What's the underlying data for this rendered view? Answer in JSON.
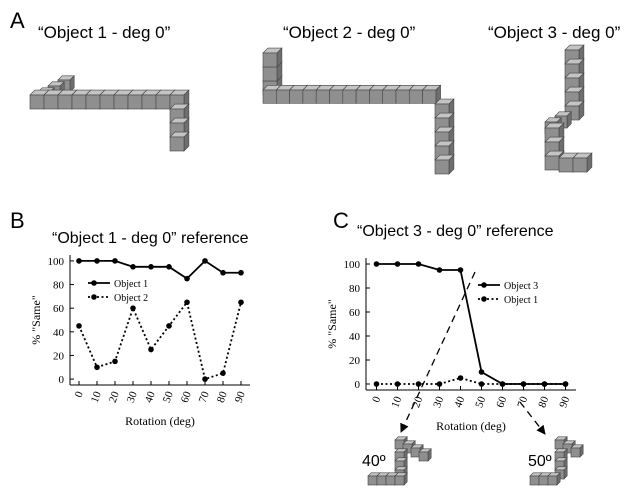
{
  "panels": [
    "A",
    "B",
    "C"
  ],
  "objects": [
    "“Object 1 - deg 0”",
    "“Object 2 - deg 0”",
    "“Object 3 - deg 0”"
  ],
  "rotations": [
    "40º",
    "50º"
  ],
  "chart_data": [
    {
      "type": "line",
      "title": "“Object 1 - deg 0” reference",
      "xlabel": "Rotation (deg)",
      "ylabel": "% \"Same\"",
      "x": [
        0,
        10,
        20,
        30,
        40,
        50,
        60,
        70,
        80,
        90
      ],
      "xlim": [
        -5,
        95
      ],
      "ylim": [
        -5,
        105
      ],
      "xticks": [
        0,
        10,
        20,
        30,
        40,
        50,
        60,
        70,
        80,
        90
      ],
      "yticks": [
        0,
        20,
        40,
        60,
        80,
        100
      ],
      "series": [
        {
          "name": "Object 1",
          "color": "#000000",
          "dash": "solid",
          "values": [
            100,
            100,
            100,
            95,
            95,
            95,
            85,
            100,
            90,
            90
          ]
        },
        {
          "name": "Object 2",
          "color": "#000000",
          "dash": "dotted",
          "values": [
            45,
            10,
            15,
            60,
            25,
            45,
            65,
            0,
            5,
            65
          ]
        }
      ]
    },
    {
      "type": "line",
      "title": "“Object 3 - deg 0” reference",
      "xlabel": "Rotation (deg)",
      "ylabel": "% \"Same\"",
      "x": [
        0,
        10,
        20,
        30,
        40,
        50,
        60,
        70,
        80,
        90
      ],
      "xlim": [
        -5,
        95
      ],
      "ylim": [
        -5,
        105
      ],
      "xticks": [
        0,
        10,
        20,
        30,
        40,
        50,
        60,
        70,
        80,
        90
      ],
      "yticks": [
        0,
        20,
        40,
        60,
        80,
        100
      ],
      "series": [
        {
          "name": "Object 3",
          "color": "#000000",
          "dash": "solid",
          "values": [
            100,
            100,
            100,
            95,
            95,
            10,
            0,
            0,
            0,
            0
          ]
        },
        {
          "name": "Object 1",
          "color": "#000000",
          "dash": "dotted",
          "values": [
            0,
            0,
            0,
            0,
            5,
            0,
            0,
            0,
            0,
            0
          ]
        }
      ]
    }
  ]
}
